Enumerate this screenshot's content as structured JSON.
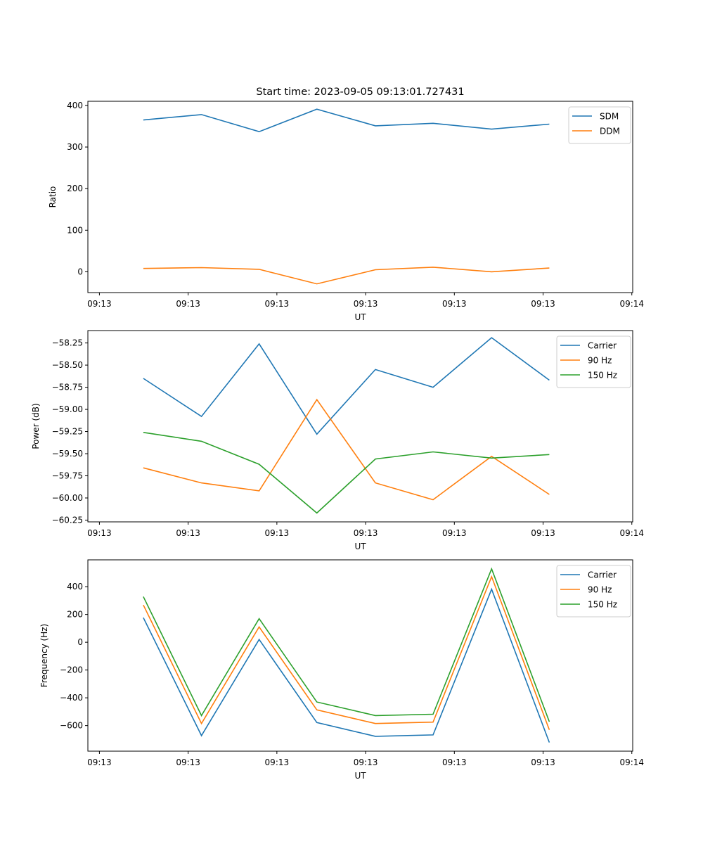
{
  "figure": {
    "title": "Start time: 2023-09-05 09:13:01.727431"
  },
  "chart_data": [
    {
      "type": "line",
      "title": "Start time: 2023-09-05 09:13:01.727431",
      "xlabel": "UT",
      "ylabel": "Ratio",
      "x_unit": "seconds after 09:13:00",
      "x": [
        4.95,
        11.5,
        18.0,
        24.5,
        31.1,
        37.6,
        44.2,
        50.7
      ],
      "xlim": [
        -1.3,
        60.1
      ],
      "xticks": [
        0,
        10,
        20,
        30,
        40,
        50,
        60
      ],
      "xtick_labels": [
        "09:13",
        "09:13",
        "09:13",
        "09:13",
        "09:13",
        "09:13",
        "09:14"
      ],
      "ylim": [
        -50,
        410
      ],
      "yticks": [
        0,
        100,
        200,
        300,
        400
      ],
      "ytick_labels": [
        "0",
        "100",
        "200",
        "300",
        "400"
      ],
      "legend_position": "top-right",
      "grid": false,
      "series": [
        {
          "name": "SDM",
          "color": "#1f77b4",
          "values": [
            365,
            378,
            337,
            391,
            351,
            357,
            343,
            355
          ]
        },
        {
          "name": "DDM",
          "color": "#ff7f0e",
          "values": [
            8,
            10,
            6,
            -29,
            5,
            11,
            0,
            9
          ]
        }
      ]
    },
    {
      "type": "line",
      "title": "",
      "xlabel": "UT",
      "ylabel": "Power (dB)",
      "x_unit": "seconds after 09:13:00",
      "x": [
        4.95,
        11.5,
        18.0,
        24.5,
        31.1,
        37.6,
        44.2,
        50.7
      ],
      "xlim": [
        -1.3,
        60.1
      ],
      "xticks": [
        0,
        10,
        20,
        30,
        40,
        50,
        60
      ],
      "xtick_labels": [
        "09:13",
        "09:13",
        "09:13",
        "09:13",
        "09:13",
        "09:13",
        "09:14"
      ],
      "ylim": [
        -60.27,
        -58.11
      ],
      "yticks": [
        -58.25,
        -58.5,
        -58.75,
        -59.0,
        -59.25,
        -59.5,
        -59.75,
        -60.0,
        -60.25
      ],
      "ytick_labels": [
        "−58.25",
        "−58.50",
        "−58.75",
        "−59.00",
        "−59.25",
        "−59.50",
        "−59.75",
        "−60.00",
        "−60.25"
      ],
      "legend_position": "top-right",
      "grid": false,
      "series": [
        {
          "name": "Carrier",
          "color": "#1f77b4",
          "values": [
            -58.65,
            -59.08,
            -58.26,
            -59.28,
            -58.55,
            -58.75,
            -58.19,
            -58.67
          ]
        },
        {
          "name": "90 Hz",
          "color": "#ff7f0e",
          "values": [
            -59.66,
            -59.83,
            -59.92,
            -58.89,
            -59.83,
            -60.02,
            -59.53,
            -59.96
          ]
        },
        {
          "name": "150 Hz",
          "color": "#2ca02c",
          "values": [
            -59.26,
            -59.36,
            -59.62,
            -60.17,
            -59.56,
            -59.48,
            -59.55,
            -59.51
          ]
        }
      ]
    },
    {
      "type": "line",
      "title": "",
      "xlabel": "UT",
      "ylabel": "Frequency (Hz)",
      "x_unit": "seconds after 09:13:00",
      "x": [
        4.95,
        11.5,
        18.0,
        24.5,
        31.1,
        37.6,
        44.2,
        50.7
      ],
      "xlim": [
        -1.3,
        60.1
      ],
      "xticks": [
        0,
        10,
        20,
        30,
        40,
        50,
        60
      ],
      "xtick_labels": [
        "09:13",
        "09:13",
        "09:13",
        "09:13",
        "09:13",
        "09:13",
        "09:14"
      ],
      "ylim": [
        -784,
        593
      ],
      "yticks": [
        -600,
        -400,
        -200,
        0,
        200,
        400
      ],
      "ytick_labels": [
        "−600",
        "−400",
        "−200",
        "0",
        "200",
        "400"
      ],
      "legend_position": "top-right",
      "grid": false,
      "series": [
        {
          "name": "Carrier",
          "color": "#1f77b4",
          "values": [
            177,
            -672,
            20,
            -578,
            -677,
            -667,
            382,
            -721
          ]
        },
        {
          "name": "90 Hz",
          "color": "#ff7f0e",
          "values": [
            268,
            -585,
            110,
            -487,
            -585,
            -575,
            472,
            -630
          ]
        },
        {
          "name": "150 Hz",
          "color": "#2ca02c",
          "values": [
            328,
            -528,
            170,
            -430,
            -528,
            -518,
            528,
            -572
          ]
        }
      ]
    }
  ]
}
